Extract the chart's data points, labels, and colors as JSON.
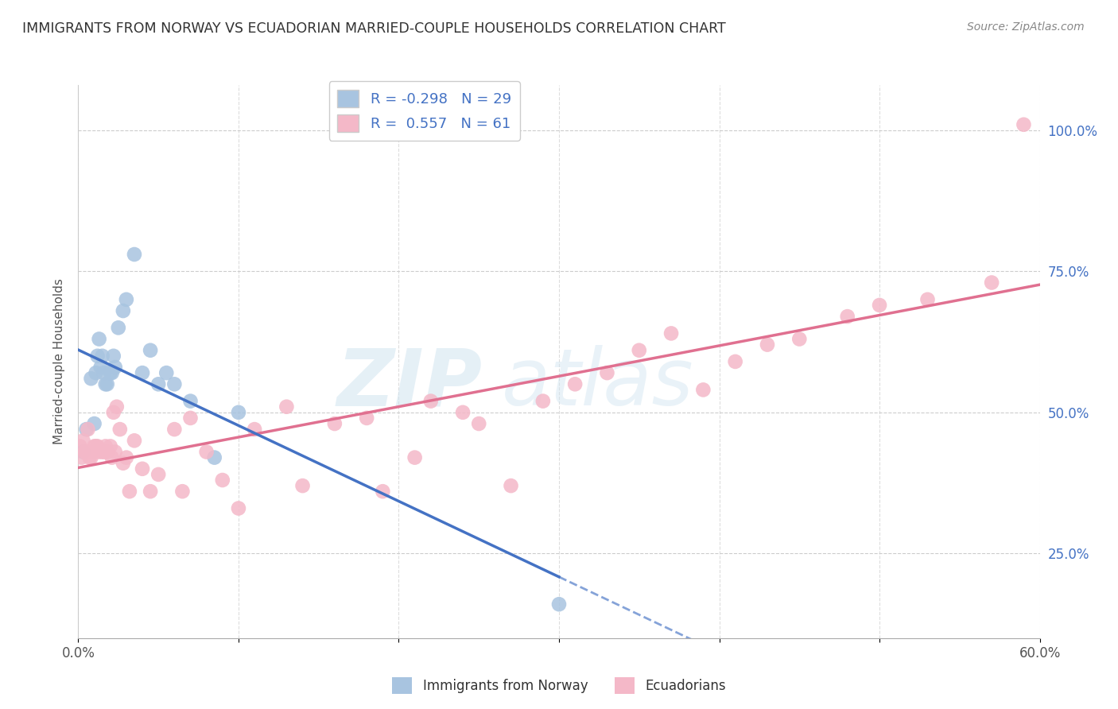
{
  "title": "IMMIGRANTS FROM NORWAY VS ECUADORIAN MARRIED-COUPLE HOUSEHOLDS CORRELATION CHART",
  "source": "Source: ZipAtlas.com",
  "ylabel": "Married-couple Households",
  "right_y_ticks": [
    25.0,
    50.0,
    75.0,
    100.0
  ],
  "right_y_tick_labels": [
    "25.0%",
    "50.0%",
    "75.0%",
    "100.0%"
  ],
  "xlim": [
    0.0,
    60.0
  ],
  "ylim": [
    10.0,
    108.0
  ],
  "legend_norway": "Immigrants from Norway",
  "legend_ecuador": "Ecuadorians",
  "norway_R": -0.298,
  "norway_N": 29,
  "ecuador_R": 0.557,
  "ecuador_N": 61,
  "norway_color": "#a8c4e0",
  "ecuador_color": "#f4b8c8",
  "norway_line_color": "#4472c4",
  "ecuador_line_color": "#e07090",
  "watermark": "ZIPatlas",
  "norway_x": [
    0.3,
    0.5,
    0.8,
    1.0,
    1.1,
    1.2,
    1.3,
    1.4,
    1.5,
    1.6,
    1.7,
    1.8,
    2.0,
    2.1,
    2.2,
    2.3,
    2.5,
    2.8,
    3.0,
    3.5,
    4.0,
    4.5,
    5.0,
    5.5,
    6.0,
    7.0,
    8.5,
    10.0,
    30.0
  ],
  "norway_y": [
    43.0,
    47.0,
    56.0,
    48.0,
    57.0,
    60.0,
    63.0,
    58.0,
    60.0,
    57.0,
    55.0,
    55.0,
    57.0,
    57.0,
    60.0,
    58.0,
    65.0,
    68.0,
    70.0,
    78.0,
    57.0,
    61.0,
    55.0,
    57.0,
    55.0,
    52.0,
    42.0,
    50.0,
    16.0
  ],
  "ecuador_x": [
    0.1,
    0.2,
    0.3,
    0.4,
    0.5,
    0.6,
    0.7,
    0.8,
    0.9,
    1.0,
    1.1,
    1.2,
    1.3,
    1.5,
    1.6,
    1.7,
    1.8,
    2.0,
    2.1,
    2.2,
    2.3,
    2.4,
    2.6,
    2.8,
    3.0,
    3.2,
    3.5,
    4.0,
    4.5,
    5.0,
    6.0,
    6.5,
    7.0,
    8.0,
    9.0,
    10.0,
    11.0,
    13.0,
    14.0,
    16.0,
    18.0,
    19.0,
    21.0,
    22.0,
    24.0,
    25.0,
    27.0,
    29.0,
    31.0,
    33.0,
    35.0,
    37.0,
    39.0,
    41.0,
    43.0,
    45.0,
    48.0,
    50.0,
    53.0,
    57.0,
    59.0
  ],
  "ecuador_y": [
    44.0,
    42.0,
    45.0,
    43.0,
    43.0,
    47.0,
    42.0,
    42.0,
    43.0,
    44.0,
    44.0,
    44.0,
    43.0,
    43.0,
    43.0,
    44.0,
    43.0,
    44.0,
    42.0,
    50.0,
    43.0,
    51.0,
    47.0,
    41.0,
    42.0,
    36.0,
    45.0,
    40.0,
    36.0,
    39.0,
    47.0,
    36.0,
    49.0,
    43.0,
    38.0,
    33.0,
    47.0,
    51.0,
    37.0,
    48.0,
    49.0,
    36.0,
    42.0,
    52.0,
    50.0,
    48.0,
    37.0,
    52.0,
    55.0,
    57.0,
    61.0,
    64.0,
    54.0,
    59.0,
    62.0,
    63.0,
    67.0,
    69.0,
    70.0,
    73.0,
    101.0
  ]
}
